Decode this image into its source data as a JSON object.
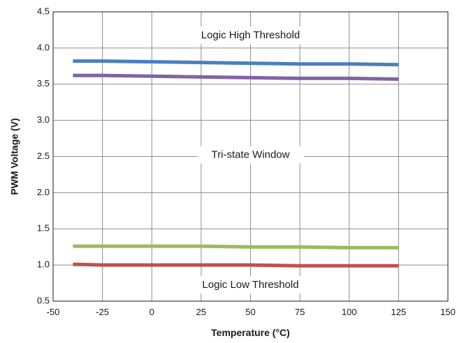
{
  "chart_data": {
    "type": "line",
    "xlabel": "Temperature (°C)",
    "ylabel": "PWM Voltage (V)",
    "xlim": [
      -50,
      150
    ],
    "ylim": [
      0.5,
      4.5
    ],
    "xticks": [
      -50,
      -25,
      0,
      25,
      50,
      75,
      100,
      125,
      150
    ],
    "yticks": [
      0.5,
      1.0,
      1.5,
      2.0,
      2.5,
      3.0,
      3.5,
      4.0,
      4.5
    ],
    "xtick_labels": [
      "-50",
      "-25",
      "0",
      "25",
      "50",
      "75",
      "100",
      "125",
      "150"
    ],
    "ytick_labels": [
      "0.5",
      "1.0",
      "1.5",
      "2.0",
      "2.5",
      "3.0",
      "3.5",
      "4.0",
      "4.5"
    ],
    "grid": true,
    "series": [
      {
        "color": "#4a7fc1",
        "x": [
          -40,
          -25,
          0,
          25,
          50,
          75,
          100,
          125
        ],
        "values": [
          3.82,
          3.82,
          3.81,
          3.8,
          3.79,
          3.78,
          3.78,
          3.77
        ]
      },
      {
        "color": "#8064a2",
        "x": [
          -40,
          -25,
          0,
          25,
          50,
          75,
          100,
          125
        ],
        "values": [
          3.62,
          3.62,
          3.61,
          3.6,
          3.59,
          3.58,
          3.58,
          3.57
        ]
      },
      {
        "color": "#9bbb59",
        "x": [
          -40,
          -25,
          0,
          25,
          50,
          75,
          100,
          125
        ],
        "values": [
          1.26,
          1.26,
          1.26,
          1.26,
          1.25,
          1.25,
          1.24,
          1.24
        ]
      },
      {
        "color": "#c0504d",
        "x": [
          -40,
          -25,
          0,
          25,
          50,
          75,
          100,
          125
        ],
        "values": [
          1.01,
          1.0,
          1.0,
          1.0,
          1.0,
          0.99,
          0.99,
          0.99
        ]
      }
    ],
    "annotations": [
      {
        "text": "Logic High Threshold",
        "x": 50,
        "y": 4.17
      },
      {
        "text": "Tri-state Window",
        "x": 50,
        "y": 2.52
      },
      {
        "text": "Logic Low Threshold",
        "x": 50,
        "y": 0.72
      }
    ]
  }
}
